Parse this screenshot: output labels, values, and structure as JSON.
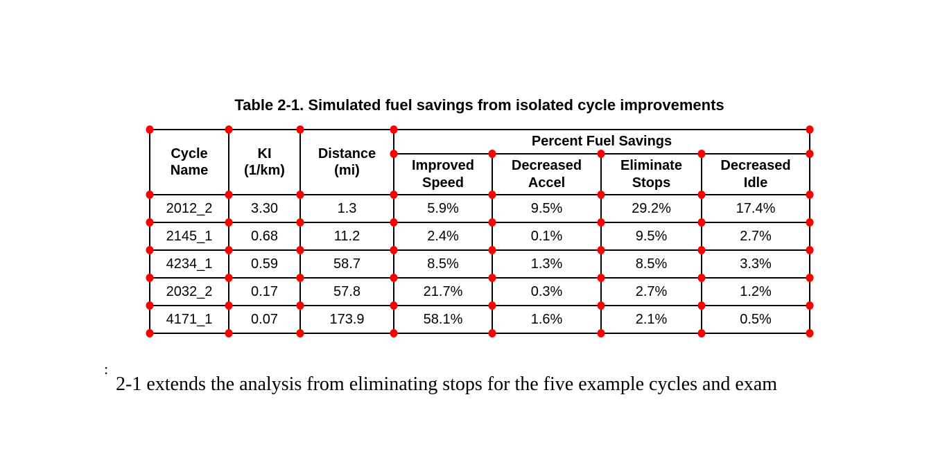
{
  "page": {
    "background": "#ffffff"
  },
  "table": {
    "caption": "Table 2-1. Simulated fuel savings from isolated cycle improvements",
    "group_header": "Percent Fuel Savings",
    "columns": [
      "Cycle\nName",
      "KI\n(1/km)",
      "Distance\n(mi)",
      "Improved\nSpeed",
      "Decreased\nAccel",
      "Eliminate\nStops",
      "Decreased\nIdle"
    ],
    "rows": [
      [
        "2012_2",
        "3.30",
        "1.3",
        "5.9%",
        "9.5%",
        "29.2%",
        "17.4%"
      ],
      [
        "2145_1",
        "0.68",
        "11.2",
        "2.4%",
        "0.1%",
        "9.5%",
        "2.7%"
      ],
      [
        "4234_1",
        "0.59",
        "58.7",
        "8.5%",
        "1.3%",
        "8.5%",
        "3.3%"
      ],
      [
        "2032_2",
        "0.17",
        "57.8",
        "21.7%",
        "0.3%",
        "2.7%",
        "1.2%"
      ],
      [
        "4171_1",
        "0.07",
        "173.9",
        "58.1%",
        "1.6%",
        "2.1%",
        "0.5%"
      ]
    ]
  },
  "chart_data": {
    "type": "table",
    "title": "Table 2-1. Simulated fuel savings from isolated cycle improvements",
    "columns": [
      "Cycle Name",
      "KI (1/km)",
      "Distance (mi)",
      "Improved Speed",
      "Decreased Accel",
      "Eliminate Stops",
      "Decreased Idle"
    ],
    "group_header": {
      "label": "Percent Fuel Savings",
      "spans_columns": [
        "Improved Speed",
        "Decreased Accel",
        "Eliminate Stops",
        "Decreased Idle"
      ]
    },
    "rows": [
      {
        "cycle_name": "2012_2",
        "ki_per_km": 3.3,
        "distance_mi": 1.3,
        "improved_speed_pct": 5.9,
        "decreased_accel_pct": 9.5,
        "eliminate_stops_pct": 29.2,
        "decreased_idle_pct": 17.4
      },
      {
        "cycle_name": "2145_1",
        "ki_per_km": 0.68,
        "distance_mi": 11.2,
        "improved_speed_pct": 2.4,
        "decreased_accel_pct": 0.1,
        "eliminate_stops_pct": 9.5,
        "decreased_idle_pct": 2.7
      },
      {
        "cycle_name": "4234_1",
        "ki_per_km": 0.59,
        "distance_mi": 58.7,
        "improved_speed_pct": 8.5,
        "decreased_accel_pct": 1.3,
        "eliminate_stops_pct": 8.5,
        "decreased_idle_pct": 3.3
      },
      {
        "cycle_name": "2032_2",
        "ki_per_km": 0.17,
        "distance_mi": 57.8,
        "improved_speed_pct": 21.7,
        "decreased_accel_pct": 0.3,
        "eliminate_stops_pct": 2.7,
        "decreased_idle_pct": 1.2
      },
      {
        "cycle_name": "4171_1",
        "ki_per_km": 0.07,
        "distance_mi": 173.9,
        "improved_speed_pct": 58.1,
        "decreased_accel_pct": 1.6,
        "eliminate_stops_pct": 2.1,
        "decreased_idle_pct": 0.5
      }
    ]
  },
  "annotations": {
    "marker_color": "#ff0000",
    "marker_shape": "corner-dot"
  },
  "body_text": {
    "fragment": ":",
    "text": "2-1 extends the analysis from eliminating stops for the five example cycles and exam"
  }
}
